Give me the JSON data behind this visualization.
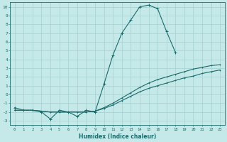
{
  "xlabel": "Humidex (Indice chaleur)",
  "bg_color": "#c5e8e8",
  "grid_color": "#a8d0d0",
  "line_color": "#1a6b6b",
  "xlim": [
    -0.5,
    23.5
  ],
  "ylim": [
    -3.5,
    10.5
  ],
  "xticks": [
    0,
    1,
    2,
    3,
    4,
    5,
    6,
    7,
    8,
    9,
    10,
    11,
    12,
    13,
    14,
    15,
    16,
    17,
    18,
    19,
    20,
    21,
    22,
    23
  ],
  "yticks": [
    -3,
    -2,
    -1,
    0,
    1,
    2,
    3,
    4,
    5,
    6,
    7,
    8,
    9,
    10
  ],
  "curve1_x": [
    0,
    1,
    2,
    3,
    4,
    5,
    6,
    7,
    8,
    9,
    10,
    11,
    12,
    13,
    14,
    15,
    16,
    17,
    18
  ],
  "curve1_y": [
    -1.5,
    -1.8,
    -1.8,
    -2.0,
    -2.8,
    -1.8,
    -2.0,
    -2.5,
    -1.8,
    -2.0,
    1.2,
    4.5,
    7.0,
    8.5,
    10.0,
    10.2,
    9.8,
    7.2,
    4.8
  ],
  "curve2_x": [
    0,
    1,
    2,
    3,
    4,
    5,
    6,
    7,
    8,
    9,
    10,
    11,
    12,
    13,
    14,
    15,
    16,
    17,
    18,
    19,
    20,
    21,
    22,
    23
  ],
  "curve2_y": [
    -1.8,
    -1.8,
    -1.8,
    -1.9,
    -2.0,
    -2.0,
    -2.0,
    -2.0,
    -2.0,
    -1.9,
    -1.5,
    -1.0,
    -0.4,
    0.2,
    0.8,
    1.3,
    1.7,
    2.0,
    2.3,
    2.6,
    2.9,
    3.1,
    3.3,
    3.4
  ],
  "curve3_x": [
    0,
    1,
    2,
    3,
    4,
    5,
    6,
    7,
    8,
    9,
    10,
    11,
    12,
    13,
    14,
    15,
    16,
    17,
    18,
    19,
    20,
    21,
    22,
    23
  ],
  "curve3_y": [
    -1.8,
    -1.8,
    -1.8,
    -1.9,
    -2.0,
    -2.0,
    -2.0,
    -2.0,
    -2.0,
    -1.9,
    -1.6,
    -1.2,
    -0.7,
    -0.2,
    0.3,
    0.7,
    1.0,
    1.3,
    1.6,
    1.9,
    2.1,
    2.4,
    2.6,
    2.8
  ]
}
